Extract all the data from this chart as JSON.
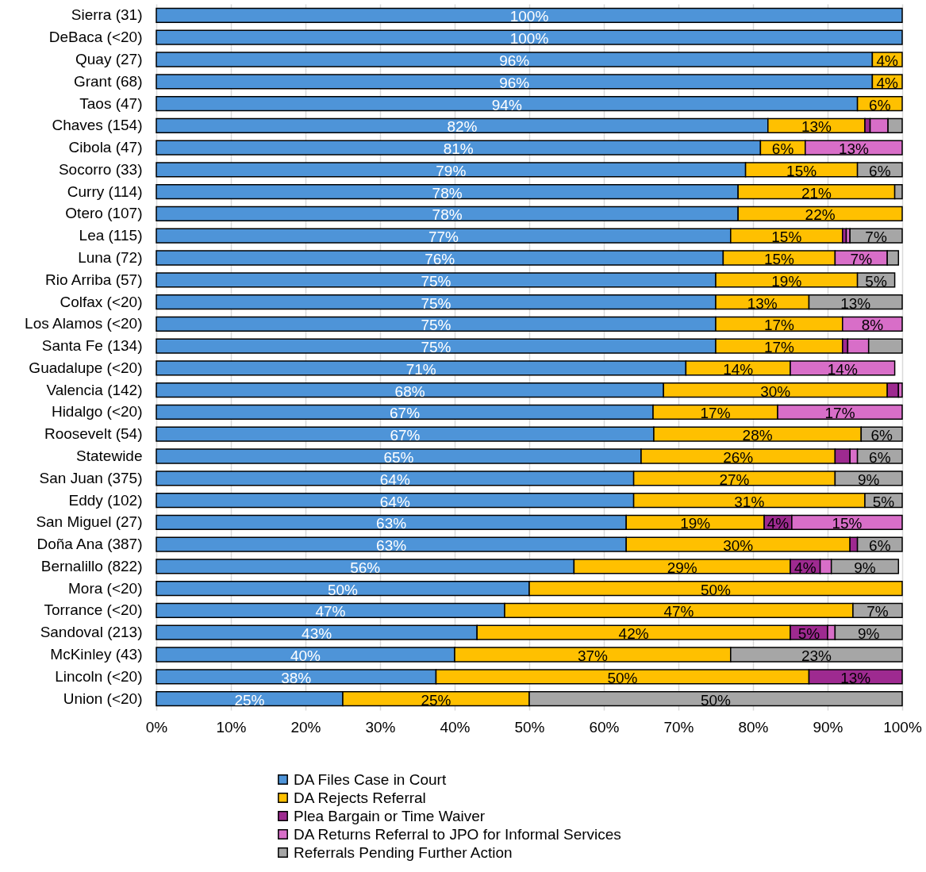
{
  "chart_data": {
    "type": "bar",
    "orientation": "horizontal",
    "stacked": true,
    "categories": [
      "Sierra (31)",
      "DeBaca (<20)",
      "Quay (27)",
      "Grant (68)",
      "Taos (47)",
      "Chaves (154)",
      "Cibola (47)",
      "Socorro (33)",
      "Curry (114)",
      "Otero (107)",
      "Lea (115)",
      "Luna (72)",
      "Rio Arriba (57)",
      "Colfax (<20)",
      "Los Alamos (<20)",
      "Santa Fe (134)",
      "Guadalupe (<20)",
      "Valencia (142)",
      "Hidalgo (<20)",
      "Roosevelt (54)",
      "Statewide",
      "San Juan (375)",
      "Eddy (102)",
      "San Miguel (27)",
      "Doña Ana (387)",
      "Bernalillo (822)",
      "Mora (<20)",
      "Torrance (<20)",
      "Sandoval (213)",
      "McKinley (43)",
      "Lincoln (<20)",
      "Union (<20)"
    ],
    "series": [
      {
        "name": "DA Files Case in Court",
        "color": "#4e94d8",
        "values": [
          100,
          100,
          96,
          96,
          94,
          82,
          81,
          79,
          78,
          78,
          77,
          76,
          75,
          75,
          75,
          75,
          71,
          68,
          66.6,
          66.7,
          65,
          64,
          64,
          63,
          63,
          56,
          50,
          46.7,
          43,
          40,
          37.5,
          25
        ],
        "value_labels": [
          "100%",
          "100%",
          "96%",
          "96%",
          "94%",
          "82%",
          "81%",
          "79%",
          "78%",
          "78%",
          "77%",
          "76%",
          "75%",
          "75%",
          "75%",
          "75%",
          "71%",
          "68%",
          "67%",
          "67%",
          "65%",
          "64%",
          "64%",
          "63%",
          "63%",
          "56%",
          "50%",
          "47%",
          "43%",
          "40%",
          "38%",
          "25%"
        ]
      },
      {
        "name": "DA Rejects Referral",
        "color": "#ffc000",
        "values": [
          null,
          null,
          4,
          4,
          6,
          13,
          6,
          15,
          21,
          22,
          15,
          15,
          19,
          12.5,
          17,
          17,
          14,
          30,
          16.7,
          27.8,
          26,
          27,
          31,
          18.5,
          30,
          29,
          50,
          46.7,
          42,
          37,
          50,
          25
        ],
        "value_labels": [
          null,
          null,
          "4%",
          "4%",
          "6%",
          "13%",
          "6%",
          "15%",
          "21%",
          "22%",
          "15%",
          "15%",
          "19%",
          "13%",
          "17%",
          "17%",
          "14%",
          "30%",
          "17%",
          "28%",
          "26%",
          "27%",
          "31%",
          "19%",
          "30%",
          "29%",
          "50%",
          "47%",
          "42%",
          "37%",
          "50%",
          "25%"
        ]
      },
      {
        "name": "Plea Bargain or Time Waiver",
        "color": "#9e2a90",
        "values": [
          null,
          null,
          null,
          null,
          null,
          0.7,
          null,
          null,
          null,
          null,
          0.5,
          null,
          null,
          null,
          null,
          0.7,
          null,
          1.5,
          null,
          null,
          2,
          null,
          null,
          3.7,
          1,
          4,
          null,
          null,
          5,
          null,
          12.5,
          null
        ],
        "value_labels": [
          null,
          null,
          null,
          null,
          null,
          null,
          null,
          null,
          null,
          null,
          null,
          null,
          null,
          null,
          null,
          null,
          null,
          null,
          null,
          null,
          null,
          null,
          null,
          "4%",
          null,
          "4%",
          null,
          null,
          "5%",
          null,
          "13%",
          null
        ]
      },
      {
        "name": " DA Returns Referral to JPO for Informal Services",
        "color": "#d86ec8",
        "values": [
          null,
          null,
          null,
          null,
          null,
          2.4,
          13,
          null,
          null,
          null,
          0.5,
          7,
          null,
          null,
          8,
          2.8,
          14,
          0.5,
          16.7,
          null,
          1,
          null,
          null,
          14.8,
          null,
          1.5,
          null,
          null,
          1,
          null,
          null,
          null
        ],
        "value_labels": [
          null,
          null,
          null,
          null,
          null,
          null,
          "13%",
          null,
          null,
          null,
          null,
          "7%",
          null,
          null,
          "8%",
          null,
          "14%",
          null,
          "17%",
          null,
          null,
          null,
          null,
          "15%",
          null,
          null,
          null,
          null,
          null,
          null,
          null,
          null
        ]
      },
      {
        "name": "Referrals Pending Further Action",
        "color": "#a6a6a6",
        "values": [
          null,
          null,
          null,
          null,
          null,
          1.9,
          null,
          6,
          1,
          null,
          7,
          1.5,
          5,
          12.5,
          null,
          4.5,
          null,
          null,
          null,
          5.5,
          6,
          9,
          5,
          null,
          6,
          9,
          null,
          6.6,
          9,
          23,
          null,
          50
        ],
        "value_labels": [
          null,
          null,
          null,
          null,
          null,
          null,
          null,
          "6%",
          null,
          null,
          "7%",
          null,
          "5%",
          "13%",
          null,
          null,
          null,
          null,
          null,
          "6%",
          "6%",
          "9%",
          "5%",
          null,
          "6%",
          "9%",
          null,
          "7%",
          "9%",
          "23%",
          null,
          "50%"
        ]
      }
    ],
    "xlim": [
      0,
      100
    ],
    "xticks": [
      {
        "value": 0,
        "label": "0%"
      },
      {
        "value": 10,
        "label": "10%"
      },
      {
        "value": 20,
        "label": "20%"
      },
      {
        "value": 30,
        "label": "30%"
      },
      {
        "value": 40,
        "label": "40%"
      },
      {
        "value": 50,
        "label": "50%"
      },
      {
        "value": 60,
        "label": "60%"
      },
      {
        "value": 70,
        "label": "70%"
      },
      {
        "value": 80,
        "label": "80%"
      },
      {
        "value": 90,
        "label": "90%"
      },
      {
        "value": 100,
        "label": "100%"
      }
    ],
    "grid": "x",
    "legend": "bottom"
  }
}
